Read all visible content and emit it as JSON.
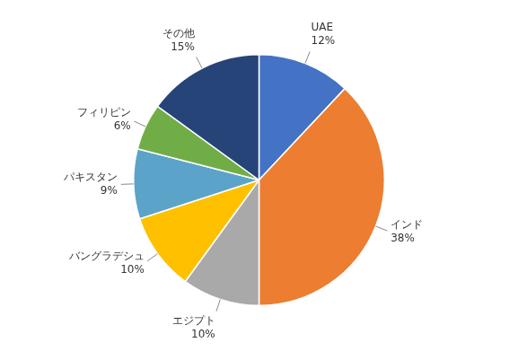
{
  "chart_data": {
    "type": "pie",
    "categories": [
      "UAE",
      "インド",
      "エジプト",
      "バングラデシュ",
      "パキスタン",
      "フィリピン",
      "その他"
    ],
    "values": [
      12,
      38,
      10,
      10,
      9,
      6,
      15
    ],
    "value_labels": [
      "12%",
      "38%",
      "10%",
      "10%",
      "9%",
      "6%",
      "15%"
    ],
    "colors": [
      "#4472C4",
      "#ED7D31",
      "#A9A9A9",
      "#FFC000",
      "#5BA3C9",
      "#70AD47",
      "#264478"
    ],
    "data_labels": true
  }
}
